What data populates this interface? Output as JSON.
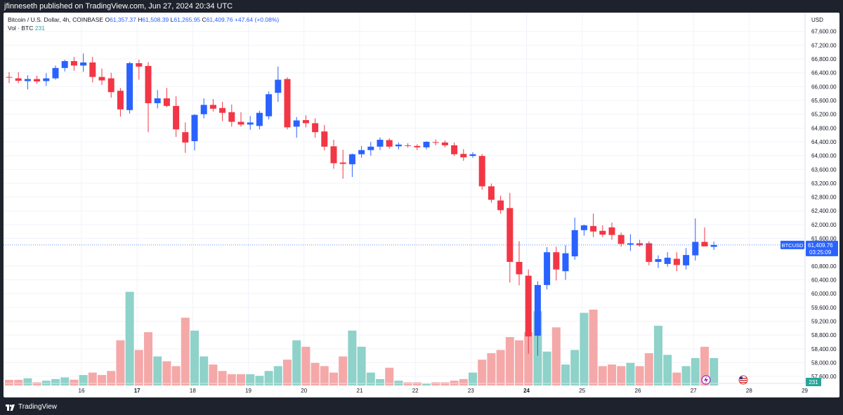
{
  "header": {
    "published": "jfinneseth published on TradingView.com, Jun 27, 2024 20:34 UTC"
  },
  "legend": {
    "title": "Bitcoin / U.S. Dollar, 4h, COINBASE",
    "o_key": "O",
    "o": "61,357.37",
    "h_key": "H",
    "h": "61,508.39",
    "l_key": "L",
    "l": "61,265.95",
    "c_key": "C",
    "c": "61,409.76",
    "change": "+47.64 (+0.08%)",
    "vol_label": "Vol · BTC",
    "vol_value": "231"
  },
  "price_axis": {
    "currency": "USD",
    "ticks": [
      "67,600.00",
      "67,200.00",
      "66,800.00",
      "66,400.00",
      "66,000.00",
      "65,600.00",
      "65,200.00",
      "64,800.00",
      "64,400.00",
      "64,000.00",
      "63,600.00",
      "63,200.00",
      "62,800.00",
      "62,400.00",
      "62,000.00",
      "61,600.00",
      "60,800.00",
      "60,400.00",
      "60,000.00",
      "59,600.00",
      "59,200.00",
      "58,800.00",
      "58,400.00",
      "58,000.00",
      "57,600.00"
    ],
    "symbol_tag": "BTCUSD",
    "last_price": "61,409.76",
    "countdown": "03:25:09",
    "volume_tag": "231"
  },
  "time_axis": {
    "labels": [
      "16",
      "17",
      "18",
      "19",
      "20",
      "21",
      "22",
      "23",
      "24",
      "25",
      "26",
      "27",
      "28",
      "29"
    ]
  },
  "footer": {
    "brand": "TradingView"
  },
  "colors": {
    "up": "#2962ff",
    "down": "#f23645",
    "vol_up": "#8ed2c9",
    "vol_down": "#f5a8a8",
    "grid": "#f0f3fa"
  },
  "chart_data": {
    "type": "candlestick",
    "symbol": "BTCUSD",
    "timeframe": "4h",
    "ylim": [
      57500,
      67900
    ],
    "candles": [
      {
        "o": 66280,
        "h": 66420,
        "l": 66100,
        "c": 66260
      },
      {
        "o": 66240,
        "h": 66420,
        "l": 66100,
        "c": 66170
      },
      {
        "o": 66160,
        "h": 66330,
        "l": 65920,
        "c": 66220
      },
      {
        "o": 66220,
        "h": 66320,
        "l": 66080,
        "c": 66150
      },
      {
        "o": 66160,
        "h": 66390,
        "l": 66020,
        "c": 66240
      },
      {
        "o": 66240,
        "h": 66610,
        "l": 66200,
        "c": 66540
      },
      {
        "o": 66540,
        "h": 66780,
        "l": 66440,
        "c": 66740
      },
      {
        "o": 66740,
        "h": 66860,
        "l": 66460,
        "c": 66610
      },
      {
        "o": 66610,
        "h": 66960,
        "l": 66430,
        "c": 66700
      },
      {
        "o": 66700,
        "h": 66860,
        "l": 66120,
        "c": 66280
      },
      {
        "o": 66280,
        "h": 66520,
        "l": 66050,
        "c": 66180
      },
      {
        "o": 66240,
        "h": 66400,
        "l": 65680,
        "c": 65840
      },
      {
        "o": 65880,
        "h": 65960,
        "l": 65130,
        "c": 65340
      },
      {
        "o": 65320,
        "h": 66720,
        "l": 65220,
        "c": 66680
      },
      {
        "o": 66680,
        "h": 66780,
        "l": 66200,
        "c": 66580
      },
      {
        "o": 66600,
        "h": 66710,
        "l": 64680,
        "c": 65520
      },
      {
        "o": 65520,
        "h": 65900,
        "l": 65370,
        "c": 65660
      },
      {
        "o": 65660,
        "h": 65960,
        "l": 65400,
        "c": 65440
      },
      {
        "o": 65440,
        "h": 65720,
        "l": 64540,
        "c": 64760
      },
      {
        "o": 64680,
        "h": 64960,
        "l": 64080,
        "c": 64380
      },
      {
        "o": 64420,
        "h": 65200,
        "l": 64150,
        "c": 65180
      },
      {
        "o": 65200,
        "h": 65660,
        "l": 65080,
        "c": 65470
      },
      {
        "o": 65470,
        "h": 65640,
        "l": 65280,
        "c": 65360
      },
      {
        "o": 65380,
        "h": 65560,
        "l": 65000,
        "c": 65240
      },
      {
        "o": 65260,
        "h": 65480,
        "l": 64840,
        "c": 64980
      },
      {
        "o": 64980,
        "h": 65260,
        "l": 64840,
        "c": 64900
      },
      {
        "o": 64900,
        "h": 65150,
        "l": 64750,
        "c": 64960
      },
      {
        "o": 64860,
        "h": 65300,
        "l": 64760,
        "c": 65240
      },
      {
        "o": 65140,
        "h": 65860,
        "l": 65050,
        "c": 65780
      },
      {
        "o": 65820,
        "h": 66580,
        "l": 65560,
        "c": 66200
      },
      {
        "o": 66220,
        "h": 66270,
        "l": 64760,
        "c": 64820
      },
      {
        "o": 64840,
        "h": 65120,
        "l": 64520,
        "c": 65020
      },
      {
        "o": 65030,
        "h": 65170,
        "l": 64820,
        "c": 64940
      },
      {
        "o": 64940,
        "h": 65080,
        "l": 64520,
        "c": 64680
      },
      {
        "o": 64700,
        "h": 64890,
        "l": 64150,
        "c": 64260
      },
      {
        "o": 64270,
        "h": 64460,
        "l": 63620,
        "c": 63780
      },
      {
        "o": 63800,
        "h": 64170,
        "l": 63330,
        "c": 63760
      },
      {
        "o": 63750,
        "h": 64060,
        "l": 63380,
        "c": 64040
      },
      {
        "o": 64040,
        "h": 64280,
        "l": 63940,
        "c": 64160
      },
      {
        "o": 64160,
        "h": 64400,
        "l": 64000,
        "c": 64260
      },
      {
        "o": 64260,
        "h": 64530,
        "l": 64160,
        "c": 64460
      },
      {
        "o": 64450,
        "h": 64500,
        "l": 64200,
        "c": 64260
      },
      {
        "o": 64270,
        "h": 64380,
        "l": 64180,
        "c": 64320
      },
      {
        "o": 64300,
        "h": 64360,
        "l": 64230,
        "c": 64280
      },
      {
        "o": 64280,
        "h": 64330,
        "l": 64160,
        "c": 64240
      },
      {
        "o": 64240,
        "h": 64420,
        "l": 64180,
        "c": 64400
      },
      {
        "o": 64390,
        "h": 64470,
        "l": 64300,
        "c": 64370
      },
      {
        "o": 64380,
        "h": 64440,
        "l": 64240,
        "c": 64300
      },
      {
        "o": 64300,
        "h": 64380,
        "l": 63990,
        "c": 64040
      },
      {
        "o": 64050,
        "h": 64190,
        "l": 63850,
        "c": 63950
      },
      {
        "o": 63990,
        "h": 64100,
        "l": 63940,
        "c": 64040
      },
      {
        "o": 63990,
        "h": 64050,
        "l": 63010,
        "c": 63110
      },
      {
        "o": 63110,
        "h": 63190,
        "l": 62640,
        "c": 62720
      },
      {
        "o": 62700,
        "h": 62840,
        "l": 62320,
        "c": 62420
      },
      {
        "o": 62480,
        "h": 62920,
        "l": 60320,
        "c": 60920
      },
      {
        "o": 60920,
        "h": 61520,
        "l": 60240,
        "c": 60560
      },
      {
        "o": 60520,
        "h": 60700,
        "l": 58260,
        "c": 58760
      },
      {
        "o": 58780,
        "h": 60360,
        "l": 58200,
        "c": 60250
      },
      {
        "o": 60250,
        "h": 61350,
        "l": 60120,
        "c": 61200
      },
      {
        "o": 61200,
        "h": 61360,
        "l": 60380,
        "c": 60700
      },
      {
        "o": 60650,
        "h": 61400,
        "l": 60400,
        "c": 61170
      },
      {
        "o": 61080,
        "h": 62200,
        "l": 60980,
        "c": 61840
      },
      {
        "o": 61840,
        "h": 62000,
        "l": 61680,
        "c": 61980
      },
      {
        "o": 61960,
        "h": 62320,
        "l": 61640,
        "c": 61800
      },
      {
        "o": 61820,
        "h": 61980,
        "l": 61640,
        "c": 61710
      },
      {
        "o": 61920,
        "h": 62060,
        "l": 61560,
        "c": 61700
      },
      {
        "o": 61700,
        "h": 61770,
        "l": 61360,
        "c": 61440
      },
      {
        "o": 61420,
        "h": 61720,
        "l": 61240,
        "c": 61460
      },
      {
        "o": 61460,
        "h": 61560,
        "l": 61360,
        "c": 61400
      },
      {
        "o": 61460,
        "h": 61520,
        "l": 60820,
        "c": 60920
      },
      {
        "o": 60920,
        "h": 61110,
        "l": 60740,
        "c": 61000
      },
      {
        "o": 60860,
        "h": 61200,
        "l": 60780,
        "c": 61040
      },
      {
        "o": 61010,
        "h": 61200,
        "l": 60650,
        "c": 60830
      },
      {
        "o": 60820,
        "h": 61320,
        "l": 60700,
        "c": 61120
      },
      {
        "o": 61110,
        "h": 62180,
        "l": 60960,
        "c": 61500
      },
      {
        "o": 61500,
        "h": 61920,
        "l": 61380,
        "c": 61370
      },
      {
        "o": 61357,
        "h": 61508,
        "l": 61266,
        "c": 61410
      }
    ],
    "volume": [
      3.5,
      3.5,
      4.5,
      2,
      3,
      4,
      5,
      3.6,
      6.5,
      8,
      6.5,
      9,
      28,
      58,
      22,
      33,
      18,
      15,
      12,
      42,
      34,
      18,
      13,
      9,
      7,
      7,
      7,
      6,
      9,
      12,
      16,
      28,
      24,
      14,
      12,
      8,
      18,
      34,
      24,
      8,
      4,
      11,
      3,
      2,
      2,
      1,
      2,
      2,
      3,
      4,
      8,
      16,
      20,
      22,
      30,
      28,
      33,
      46,
      21,
      36,
      13,
      22,
      45,
      47,
      12,
      13,
      12,
      14,
      12,
      20,
      37,
      19,
      8,
      12,
      17,
      24,
      17
    ]
  }
}
